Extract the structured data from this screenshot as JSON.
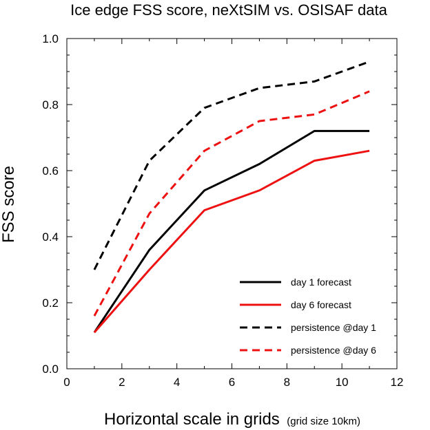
{
  "chart_data": {
    "type": "line",
    "title": "Ice edge FSS score, neXtSIM vs. OSISAF data",
    "xlabel": "Horizontal scale in grids",
    "xlabel_note": "(grid size 10km)",
    "ylabel": "FSS score",
    "xlim": [
      0,
      12
    ],
    "ylim": [
      0,
      1.0
    ],
    "xticks": [
      0,
      2,
      4,
      6,
      8,
      10,
      12
    ],
    "xtick_labels": [
      "0",
      "2",
      "4",
      "6",
      "8",
      "10",
      "12"
    ],
    "yticks": [
      0,
      0.2,
      0.4,
      0.6,
      0.8,
      1.0
    ],
    "ytick_labels": [
      "0.0",
      "0.2",
      "0.4",
      "0.6",
      "0.8",
      "1.0"
    ],
    "grid": false,
    "legend_position": "lower-right",
    "x": [
      1,
      3,
      5,
      7,
      9,
      11
    ],
    "series": [
      {
        "name": "day 1 forecast",
        "color": "#000000",
        "dash": "solid",
        "values": [
          0.11,
          0.36,
          0.54,
          0.62,
          0.72,
          0.72
        ]
      },
      {
        "name": "day 6 forecast",
        "color": "#ee1111",
        "dash": "solid",
        "values": [
          0.11,
          0.3,
          0.48,
          0.54,
          0.63,
          0.66
        ]
      },
      {
        "name": "persistence @day 1",
        "color": "#000000",
        "dash": "dashed",
        "values": [
          0.3,
          0.63,
          0.79,
          0.85,
          0.87,
          0.93
        ]
      },
      {
        "name": "persistence @day 6",
        "color": "#ee1111",
        "dash": "dashed",
        "values": [
          0.16,
          0.47,
          0.66,
          0.75,
          0.77,
          0.84
        ]
      }
    ]
  }
}
